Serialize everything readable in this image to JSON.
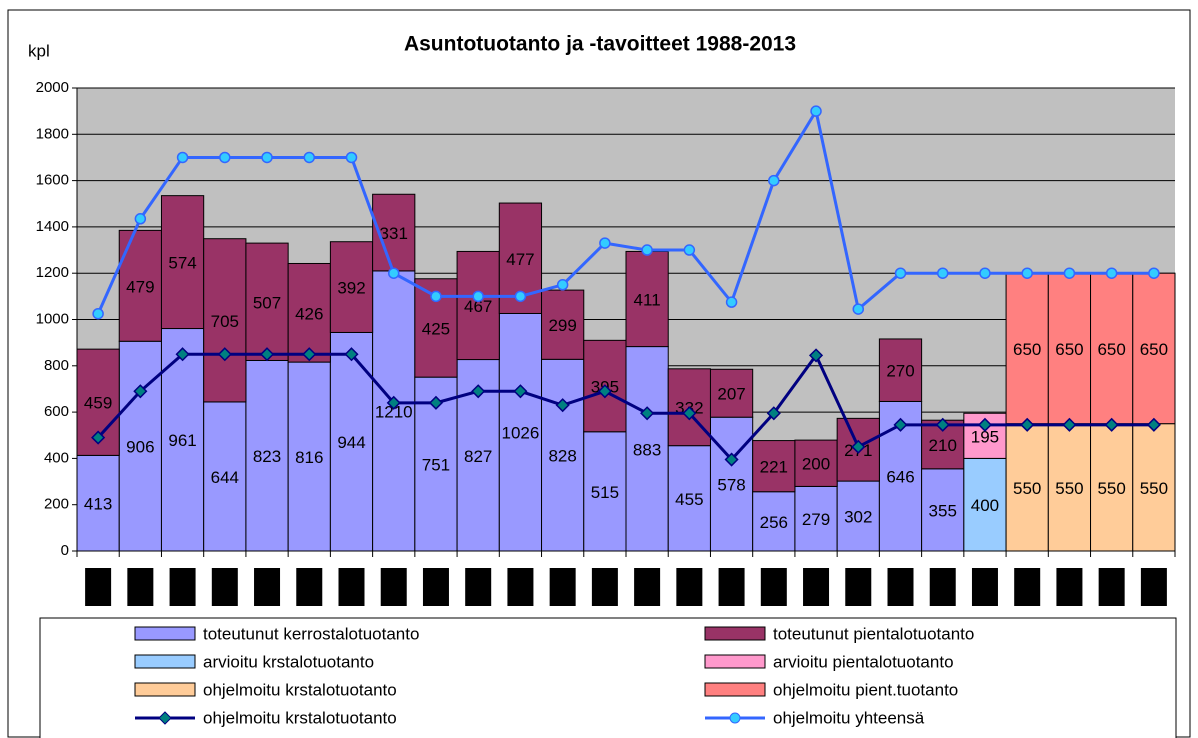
{
  "chart_data": {
    "type": "bar",
    "stacked": true,
    "title": "Asuntotuotanto ja -tavoitteet 1988-2013",
    "y_label": "kpl",
    "categories": [
      null,
      null,
      null,
      null,
      null,
      null,
      null,
      null,
      null,
      null,
      null,
      null,
      null,
      null,
      null,
      null,
      null,
      null,
      null,
      null,
      null,
      null,
      null,
      null,
      null,
      null
    ],
    "ylim": [
      0,
      2000
    ],
    "yticks": [
      0,
      200,
      400,
      600,
      800,
      1000,
      1200,
      1400,
      1600,
      1800,
      2000
    ],
    "grid": true,
    "background": "#c0c0c0",
    "legend": "bottom",
    "series": [
      {
        "name": "toteutunut kerrostalotuotanto",
        "type": "bar",
        "color": "#9999ff",
        "values": [
          413,
          906,
          961,
          644,
          823,
          816,
          944,
          1210,
          751,
          827,
          1026,
          828,
          515,
          883,
          455,
          578,
          256,
          279,
          302,
          646,
          355,
          null,
          null,
          null,
          null,
          null
        ]
      },
      {
        "name": "toteutunut pientalotuotanto",
        "type": "bar",
        "color": "#993366",
        "values": [
          459,
          479,
          574,
          705,
          507,
          426,
          392,
          331,
          425,
          467,
          477,
          299,
          395,
          411,
          332,
          207,
          221,
          200,
          271,
          270,
          210,
          null,
          null,
          null,
          null,
          null
        ]
      },
      {
        "name": "arvioitu krstalotuotanto",
        "type": "bar",
        "color": "#99ccff",
        "values": [
          null,
          null,
          null,
          null,
          null,
          null,
          null,
          null,
          null,
          null,
          null,
          null,
          null,
          null,
          null,
          null,
          null,
          null,
          null,
          null,
          null,
          400,
          null,
          null,
          null,
          null
        ]
      },
      {
        "name": "arvioitu pientalotuotanto",
        "type": "bar",
        "color": "#ff99cc",
        "values": [
          null,
          null,
          null,
          null,
          null,
          null,
          null,
          null,
          null,
          null,
          null,
          null,
          null,
          null,
          null,
          null,
          null,
          null,
          null,
          null,
          null,
          195,
          null,
          null,
          null,
          null
        ]
      },
      {
        "name": "ohjelmoitu krstalotuotanto",
        "type": "bar",
        "color": "#ffcc99",
        "values": [
          null,
          null,
          null,
          null,
          null,
          null,
          null,
          null,
          null,
          null,
          null,
          null,
          null,
          null,
          null,
          null,
          null,
          null,
          null,
          null,
          null,
          null,
          550,
          550,
          550,
          550
        ]
      },
      {
        "name": "ohjelmoitu pient.tuotanto",
        "type": "bar",
        "color": "#ff8080",
        "values": [
          null,
          null,
          null,
          null,
          null,
          null,
          null,
          null,
          null,
          null,
          null,
          null,
          null,
          null,
          null,
          null,
          null,
          null,
          null,
          null,
          null,
          null,
          650,
          650,
          650,
          650
        ]
      },
      {
        "name": "ohjelmoitu krstalotuotanto",
        "type": "line",
        "color": "#000080",
        "marker": "diamond",
        "values": [
          490,
          690,
          850,
          850,
          850,
          850,
          850,
          640,
          640,
          690,
          690,
          630,
          690,
          595,
          595,
          395,
          595,
          845,
          450,
          545,
          545,
          545,
          545,
          545,
          545,
          545
        ]
      },
      {
        "name": "ohjelmoitu yhteensä",
        "type": "line",
        "color": "#3366ff",
        "marker": "circle",
        "values": [
          1025,
          1435,
          1700,
          1700,
          1700,
          1700,
          1700,
          1200,
          1100,
          1100,
          1100,
          1150,
          1330,
          1300,
          1300,
          1075,
          1600,
          1900,
          1045,
          1200,
          1200,
          1200,
          1200,
          1200,
          1200,
          1200
        ]
      }
    ]
  }
}
